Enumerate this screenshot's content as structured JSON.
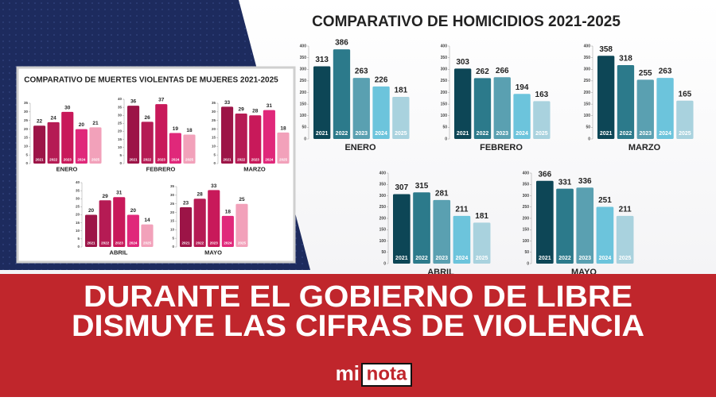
{
  "homicidios_title": "COMPARATIVO DE HOMICIDIOS 2021-2025",
  "mujeres_title": "COMPARATIVO DE MUERTES VIOLENTAS DE MUJERES 2021-2025",
  "headline": [
    "DURANTE EL GOBIERNO DE LIBRE",
    "DISMUYE LAS CIFRAS DE VIOLENCIA"
  ],
  "logo": [
    "mi",
    "nota"
  ],
  "chart_data": [
    {
      "type": "bar",
      "title": "ENERO",
      "categories": [
        "2021",
        "2022",
        "2023",
        "2024",
        "2025"
      ],
      "values": [
        313,
        386,
        263,
        226,
        181
      ],
      "colors": [
        "#0d4656",
        "#2c7a8b",
        "#5aa0b1",
        "#6cc4dc",
        "#a9d2de"
      ],
      "ylim": [
        0,
        400
      ],
      "yticks": [
        0,
        50,
        100,
        150,
        200,
        250,
        300,
        350,
        400
      ]
    },
    {
      "type": "bar",
      "title": "FEBRERO",
      "categories": [
        "2021",
        "2022",
        "2023",
        "2024",
        "2025"
      ],
      "values": [
        303,
        262,
        266,
        194,
        163
      ],
      "colors": [
        "#0d4656",
        "#2c7a8b",
        "#5aa0b1",
        "#6cc4dc",
        "#a9d2de"
      ],
      "ylim": [
        0,
        400
      ],
      "yticks": [
        0,
        50,
        100,
        150,
        200,
        250,
        300,
        350,
        400
      ]
    },
    {
      "type": "bar",
      "title": "MARZO",
      "categories": [
        "2021",
        "2022",
        "2023",
        "2024",
        "2025"
      ],
      "values": [
        358,
        318,
        255,
        263,
        165
      ],
      "colors": [
        "#0d4656",
        "#2c7a8b",
        "#5aa0b1",
        "#6cc4dc",
        "#a9d2de"
      ],
      "ylim": [
        0,
        400
      ],
      "yticks": [
        0,
        50,
        100,
        150,
        200,
        250,
        300,
        350,
        400
      ]
    },
    {
      "type": "bar",
      "title": "ABRIL",
      "categories": [
        "2021",
        "2022",
        "2023",
        "2024",
        "2025"
      ],
      "values": [
        307,
        315,
        281,
        211,
        181
      ],
      "colors": [
        "#0d4656",
        "#2c7a8b",
        "#5aa0b1",
        "#6cc4dc",
        "#a9d2de"
      ],
      "ylim": [
        0,
        400
      ],
      "yticks": [
        0,
        50,
        100,
        150,
        200,
        250,
        300,
        350,
        400
      ]
    },
    {
      "type": "bar",
      "title": "MAYO",
      "categories": [
        "2021",
        "2022",
        "2023",
        "2024",
        "2025"
      ],
      "values": [
        366,
        331,
        336,
        251,
        211
      ],
      "colors": [
        "#0d4656",
        "#2c7a8b",
        "#5aa0b1",
        "#6cc4dc",
        "#a9d2de"
      ],
      "ylim": [
        0,
        400
      ],
      "yticks": [
        0,
        50,
        100,
        150,
        200,
        250,
        300,
        350,
        400
      ]
    },
    {
      "type": "bar",
      "title": "ENERO",
      "categories": [
        "2021",
        "2022",
        "2023",
        "2024",
        "2025"
      ],
      "values": [
        22,
        24,
        30,
        20,
        21
      ],
      "colors": [
        "#9c1447",
        "#b51b54",
        "#c8195a",
        "#e0287a",
        "#f2a1ba"
      ],
      "ylim": [
        0,
        35
      ],
      "yticks": [
        0,
        5,
        10,
        15,
        20,
        25,
        30,
        35
      ]
    },
    {
      "type": "bar",
      "title": "FEBRERO",
      "categories": [
        "2021",
        "2022",
        "2023",
        "2024",
        "2025"
      ],
      "values": [
        36,
        26,
        37,
        19,
        18
      ],
      "colors": [
        "#9c1447",
        "#b51b54",
        "#c8195a",
        "#e0287a",
        "#f2a1ba"
      ],
      "ylim": [
        0,
        40
      ],
      "yticks": [
        0,
        5,
        10,
        15,
        20,
        25,
        30,
        35,
        40
      ]
    },
    {
      "type": "bar",
      "title": "MARZO",
      "categories": [
        "2021",
        "2022",
        "2023",
        "2024",
        "2025"
      ],
      "values": [
        33,
        29,
        28,
        31,
        18
      ],
      "colors": [
        "#9c1447",
        "#b51b54",
        "#c8195a",
        "#e0287a",
        "#f2a1ba"
      ],
      "ylim": [
        0,
        35
      ],
      "yticks": [
        0,
        5,
        10,
        15,
        20,
        25,
        30,
        35
      ]
    },
    {
      "type": "bar",
      "title": "ABRIL",
      "categories": [
        "2021",
        "2022",
        "2023",
        "2024",
        "2025"
      ],
      "values": [
        20,
        29,
        31,
        20,
        14
      ],
      "colors": [
        "#9c1447",
        "#b51b54",
        "#c8195a",
        "#e0287a",
        "#f2a1ba"
      ],
      "ylim": [
        0,
        40
      ],
      "yticks": [
        0,
        5,
        10,
        15,
        20,
        25,
        30,
        35,
        40
      ]
    },
    {
      "type": "bar",
      "title": "MAYO",
      "categories": [
        "2021",
        "2022",
        "2023",
        "2024",
        "2025"
      ],
      "values": [
        23,
        28,
        33,
        18,
        25
      ],
      "colors": [
        "#9c1447",
        "#b51b54",
        "#c8195a",
        "#e0287a",
        "#f2a1ba"
      ],
      "ylim": [
        0,
        35
      ],
      "yticks": [
        0,
        5,
        10,
        15,
        20,
        25,
        30,
        35
      ]
    }
  ]
}
